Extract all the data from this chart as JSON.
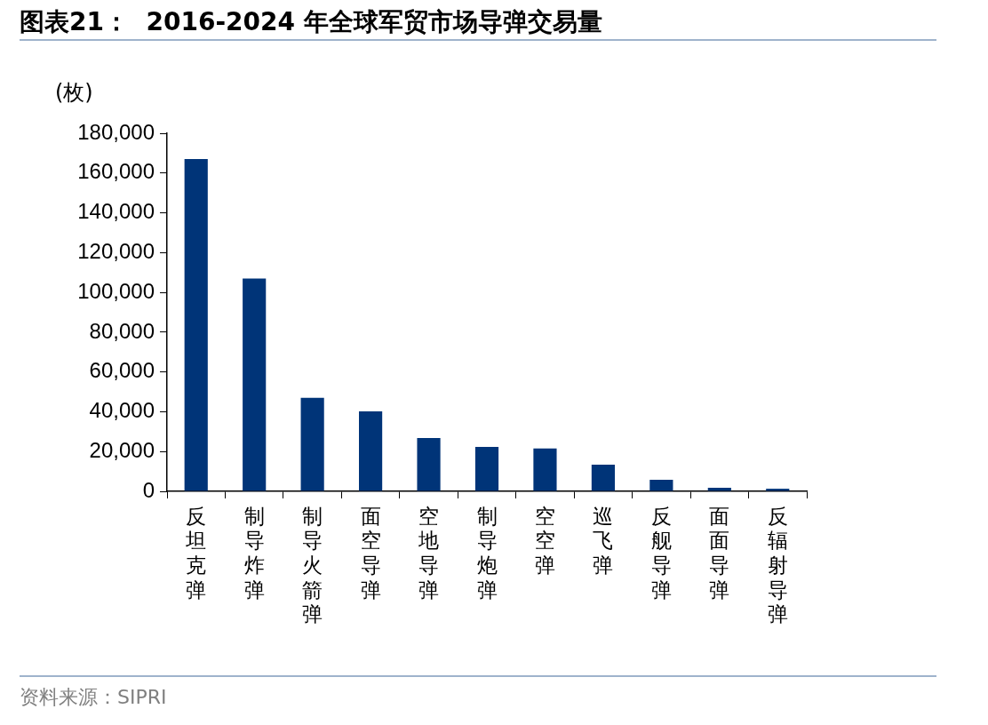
{
  "chart_data": {
    "type": "bar",
    "title": "图表21：  2016-2024 年全球军贸市场导弹交易量",
    "ylabel": "(枚)",
    "categories": [
      "反坦克弹",
      "制导炸弹",
      "制导火箭弹",
      "面空导弹",
      "空地导弹",
      "制导炮弹",
      "空空弹",
      "巡飞弹",
      "反舰导弹",
      "面面导弹",
      "反辐射导弹"
    ],
    "values": [
      167000,
      107000,
      47000,
      40200,
      26800,
      22300,
      21600,
      13400,
      5800,
      1800,
      1300
    ],
    "color": "#003478",
    "ylim": [
      0,
      180000
    ],
    "yticks": [
      0,
      {
        "value": 20000,
        "label": "20,000"
      },
      {
        "value": 40000,
        "label": "40,000"
      },
      {
        "value": 60000,
        "label": "60,000"
      },
      {
        "value": 80000,
        "label": "80,000"
      },
      {
        "value": 100000,
        "label": "100,000"
      },
      {
        "value": 120000,
        "label": "120,000"
      },
      {
        "value": 140000,
        "label": "140,000"
      },
      {
        "value": 160000,
        "label": "160,000"
      },
      {
        "value": 180000,
        "label": "180,000"
      }
    ],
    "grid": false,
    "legend": false,
    "annotations": [
      "资料来源：SIPRI"
    ]
  }
}
